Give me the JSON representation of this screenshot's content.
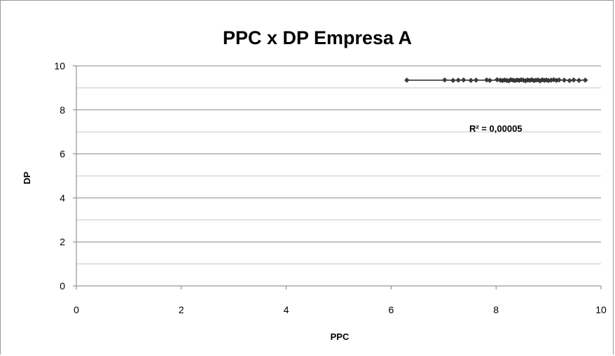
{
  "chart_data": {
    "type": "scatter",
    "title": "PPC x DP Empresa A",
    "xlabel": "PPC",
    "ylabel": "DP",
    "xlim": [
      0,
      10
    ],
    "ylim": [
      0,
      10
    ],
    "x_ticks": [
      "0",
      "2",
      "4",
      "6",
      "8",
      "10"
    ],
    "y_ticks": [
      "0",
      "2",
      "4",
      "6",
      "8",
      "10"
    ],
    "grid": "horizontal major and minor",
    "legend": "none",
    "annotation": "R² = 0,00005",
    "trendline": {
      "type": "linear",
      "x": [
        6.3,
        9.75
      ],
      "y": [
        9.35,
        9.35
      ]
    },
    "marker_color": "#404040",
    "series": [
      {
        "x": [
          6.3,
          7.02,
          7.18,
          7.28,
          7.38,
          7.52,
          7.62,
          7.82,
          7.88,
          8.02,
          8.08,
          8.12,
          8.16,
          8.2,
          8.24,
          8.28,
          8.32,
          8.36,
          8.4,
          8.44,
          8.48,
          8.52,
          8.56,
          8.6,
          8.64,
          8.68,
          8.72,
          8.76,
          8.8,
          8.84,
          8.88,
          8.92,
          8.96,
          9.0,
          9.05,
          9.1,
          9.15,
          9.2,
          9.3,
          9.4,
          9.48,
          9.58,
          9.7
        ],
        "y": [
          9.35,
          9.36,
          9.34,
          9.35,
          9.36,
          9.34,
          9.35,
          9.36,
          9.34,
          9.37,
          9.35,
          9.33,
          9.36,
          9.34,
          9.32,
          9.37,
          9.35,
          9.33,
          9.36,
          9.34,
          9.37,
          9.35,
          9.32,
          9.36,
          9.34,
          9.37,
          9.33,
          9.35,
          9.36,
          9.32,
          9.37,
          9.34,
          9.36,
          9.33,
          9.35,
          9.37,
          9.34,
          9.36,
          9.35,
          9.33,
          9.36,
          9.34,
          9.35
        ]
      }
    ]
  }
}
